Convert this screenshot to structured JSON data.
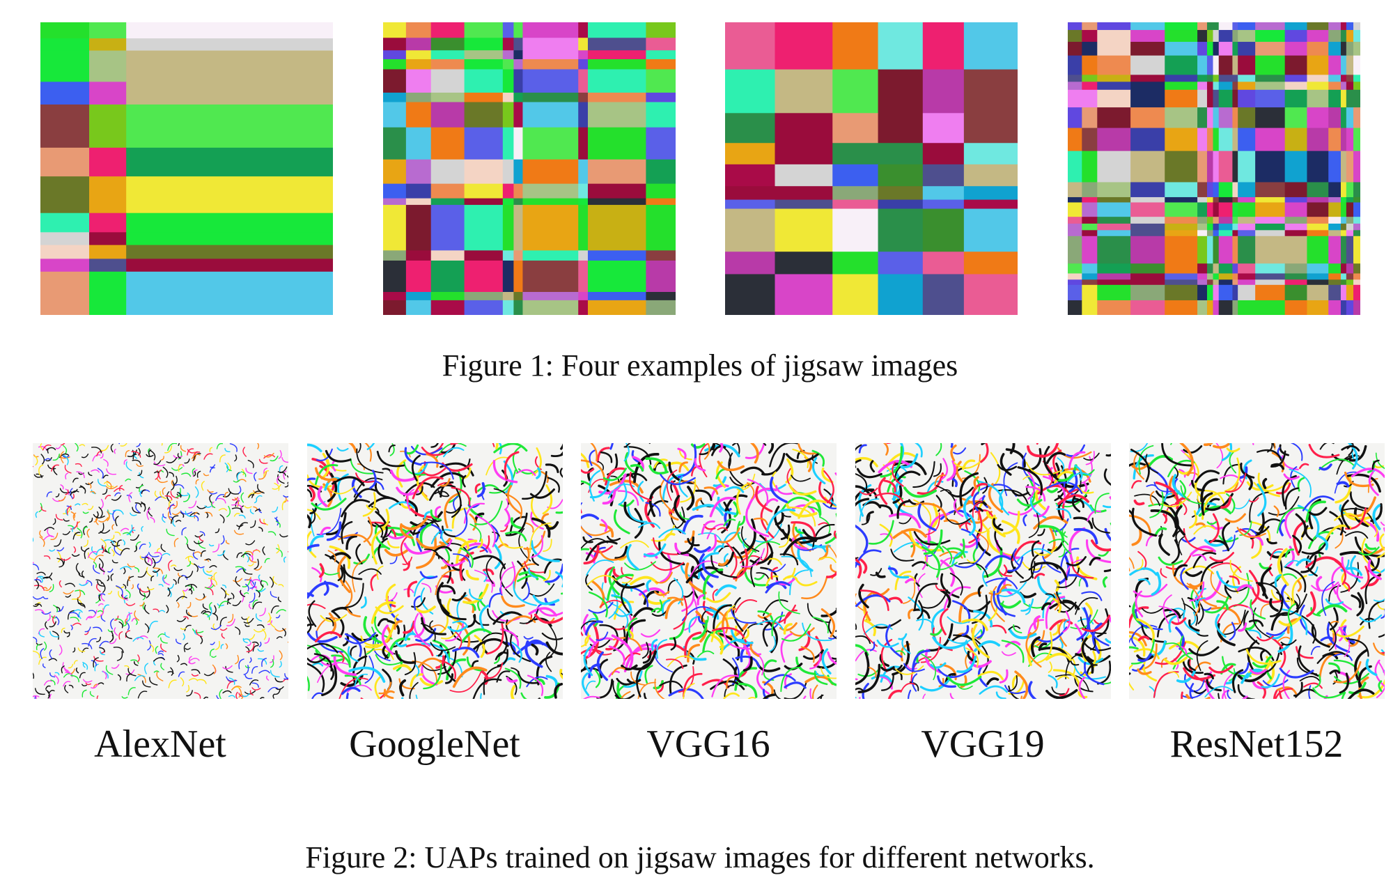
{
  "figure1": {
    "caption": "Figure 1: Four examples of jigsaw images",
    "images": [
      {
        "name": "jigsaw-image-1"
      },
      {
        "name": "jigsaw-image-2"
      },
      {
        "name": "jigsaw-image-3"
      },
      {
        "name": "jigsaw-image-4"
      }
    ]
  },
  "figure2": {
    "caption": "Figure 2: UAPs trained on jigsaw images for different networks.",
    "panels": [
      {
        "label": "AlexNet"
      },
      {
        "label": "GoogleNet"
      },
      {
        "label": "VGG16"
      },
      {
        "label": "VGG19"
      },
      {
        "label": "ResNet152"
      }
    ]
  }
}
